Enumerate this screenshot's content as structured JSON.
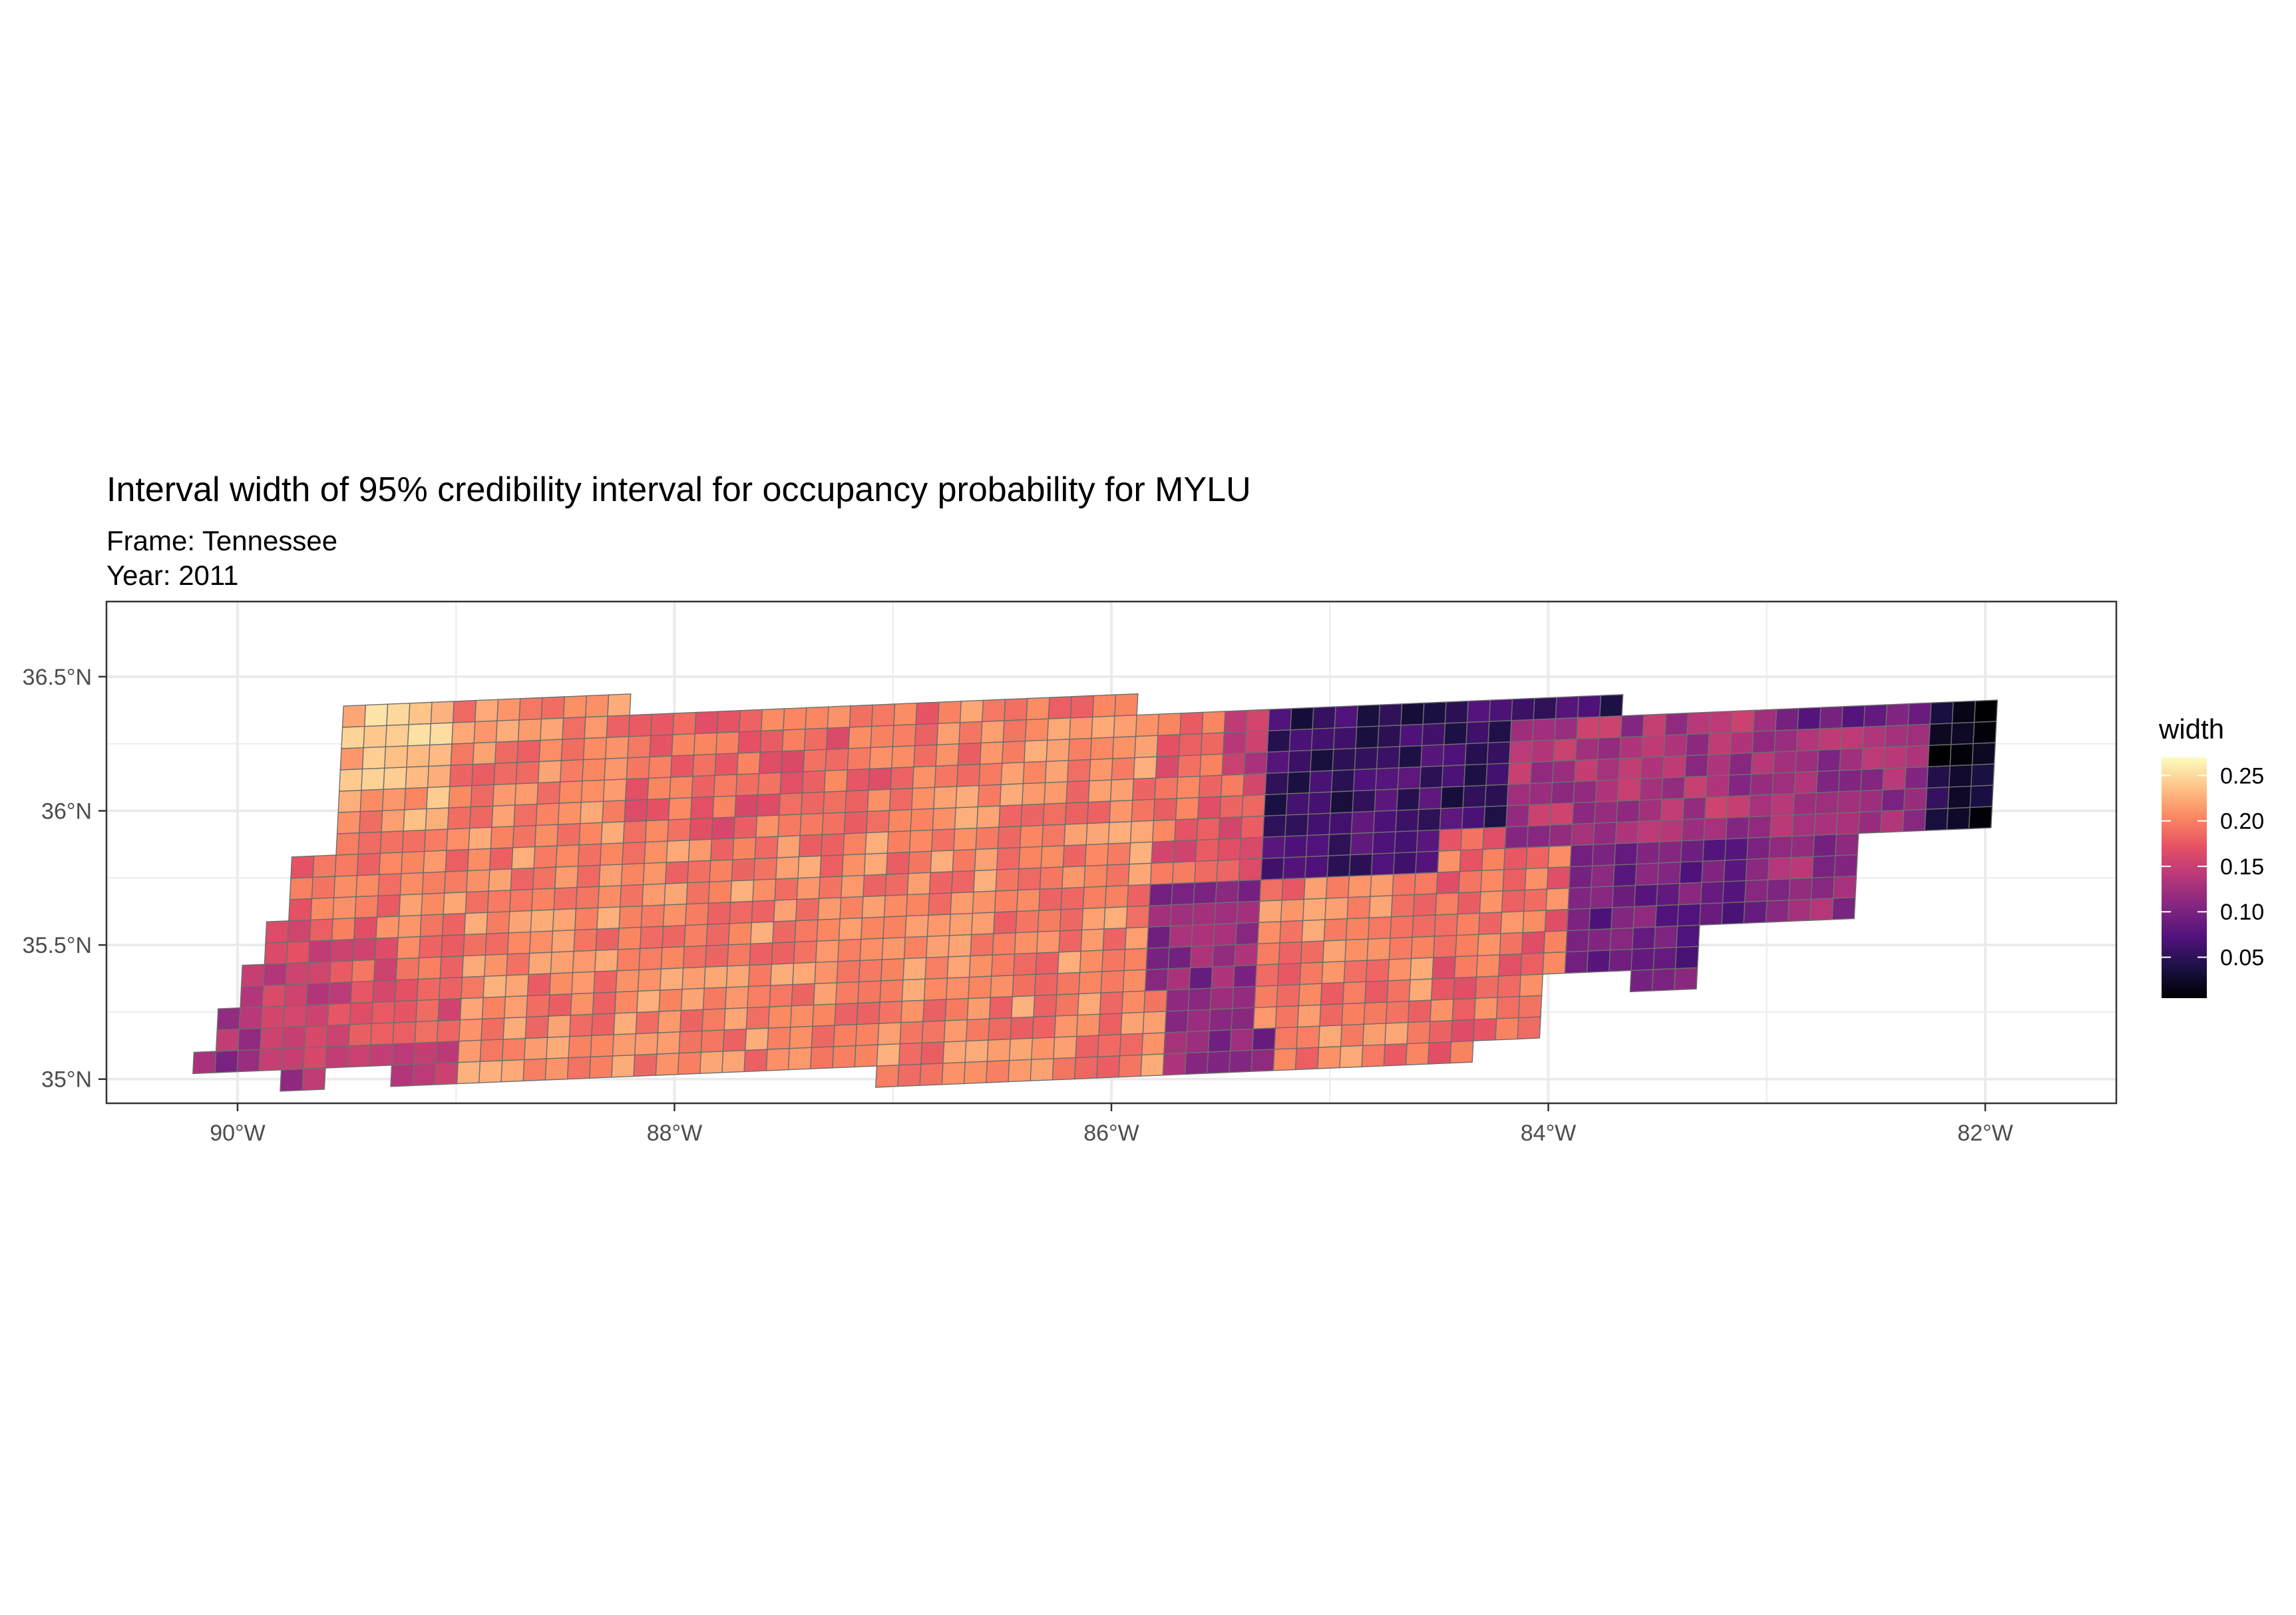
{
  "title": "Interval width of 95% credibility interval for occupancy probability for MYLU",
  "subtitle_lines": [
    "Frame: Tennessee",
    "Year: 2011"
  ],
  "chart_data": {
    "type": "heatmap",
    "x_ticks": [
      "90°W",
      "88°W",
      "86°W",
      "84°W",
      "82°W"
    ],
    "x_tick_values": [
      -90,
      -88,
      -86,
      -84,
      -82
    ],
    "y_ticks": [
      "35°N",
      "35.5°N",
      "36°N",
      "36.5°N"
    ],
    "y_tick_values": [
      35,
      35.5,
      36,
      36.5
    ],
    "xlim": [
      -90.6,
      -81.4
    ],
    "ylim": [
      34.91,
      36.78
    ],
    "grid": true,
    "legend": {
      "title": "width",
      "placement": "right",
      "range": [
        0.005,
        0.27
      ],
      "tick_values": [
        0.25,
        0.2,
        0.15,
        0.1,
        0.05
      ],
      "tick_labels": [
        "0.25",
        "0.20",
        "0.15",
        "0.10",
        "0.05"
      ]
    },
    "colormap": "magma",
    "colors": {
      "stops": [
        "#000004",
        "#1c1044",
        "#4f127b",
        "#812581",
        "#b5367a",
        "#e55064",
        "#fb8761",
        "#fec287",
        "#fcfdbf"
      ],
      "cell_border": "#6e6e6e",
      "gridline": "#ebebeb",
      "panel_border": "#333333",
      "axis_text": "#4d4d4d"
    }
  }
}
